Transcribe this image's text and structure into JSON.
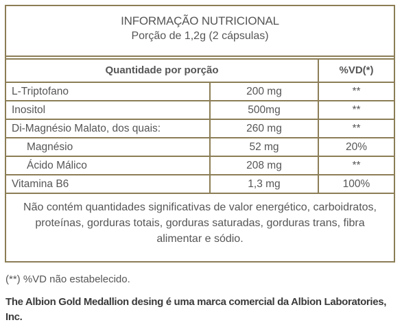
{
  "header": {
    "title": "INFORMAÇÃO NUTRICIONAL",
    "serving": "Porção de 1,2g (2 cápsulas)"
  },
  "table": {
    "columns": [
      "Quantidade por porção",
      "%VD(*)"
    ],
    "rows": [
      [
        "L-Triptofano",
        "200 mg",
        "**"
      ],
      [
        "Inositol",
        "500mg",
        "**"
      ],
      [
        "Di-Magnésio Malato, dos quais:",
        "260 mg",
        "**"
      ],
      [
        "Magnésio",
        "52 mg",
        "20%"
      ],
      [
        "Ácido Málico",
        "208 mg",
        "**"
      ],
      [
        "Vitamina B6",
        "1,3 mg",
        "100%"
      ]
    ],
    "footnote": "Não contém quantidades significativas de valor energético, carboidratos, proteínas, gorduras totais, gorduras saturadas, gorduras trans, fibra alimentar e sódio."
  },
  "notes": [
    "(**) %VD não estabelecido.",
    "The Albion Gold Medallion desing é uma marca comercial da Albion Laboratories, Inc."
  ]
}
